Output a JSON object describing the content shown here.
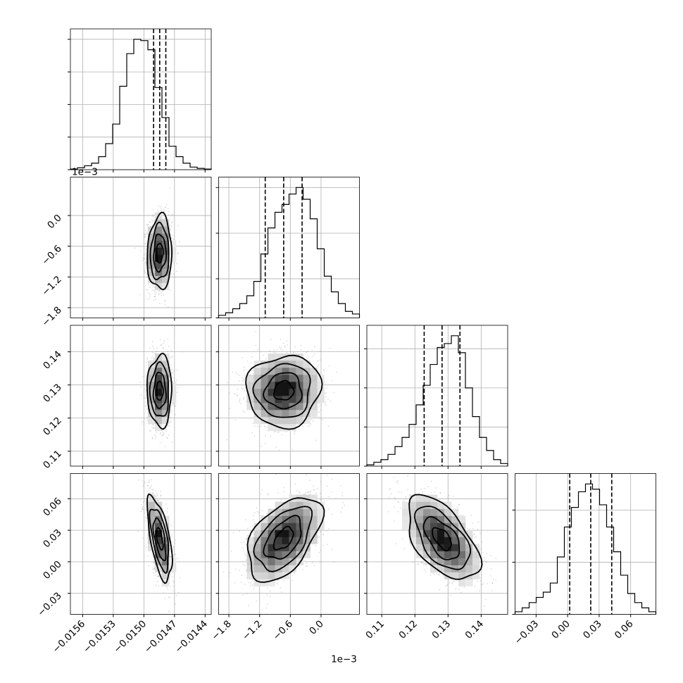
{
  "chart_data": {
    "type": "corner",
    "n_params": 4,
    "quantiles": [
      0.16,
      0.5,
      0.84
    ],
    "params": [
      {
        "range": [
          -0.01572,
          -0.01434
        ],
        "ticks": [
          -0.0156,
          -0.0153,
          -0.015,
          -0.0147,
          -0.0144
        ],
        "tick_labels": [
          "−0.0156",
          "−0.0153",
          "−0.0150",
          "−0.0147",
          "−0.0144"
        ],
        "median": -0.014845,
        "q16": -0.014905,
        "q84": -0.014785,
        "sigma": 6e-05,
        "hist": [
          0.005,
          0.015,
          0.03,
          0.05,
          0.1,
          0.2,
          0.35,
          0.64,
          0.89,
          1.0,
          0.99,
          0.92,
          0.63,
          0.4,
          0.18,
          0.1,
          0.05,
          0.02,
          0.01,
          0.005
        ],
        "hist_ticks": [
          0.0,
          0.25,
          0.5,
          0.75,
          1.0
        ],
        "offset_text": ""
      },
      {
        "range": [
          -2.0,
          0.75
        ],
        "ticks": [
          -1.8,
          -1.2,
          -0.6,
          0.0
        ],
        "tick_labels": [
          "−1.8",
          "−1.2",
          "−0.6",
          "0.0"
        ],
        "median": -0.73,
        "q16": -1.09,
        "q84": -0.37,
        "sigma": 0.36,
        "hist": [
          0.02,
          0.04,
          0.07,
          0.11,
          0.17,
          0.28,
          0.49,
          0.69,
          0.81,
          0.87,
          0.95,
          1.0,
          0.91,
          0.76,
          0.53,
          0.32,
          0.2,
          0.11,
          0.05,
          0.03
        ],
        "hist_ticks": [
          0.0,
          0.3,
          0.65,
          1.0
        ],
        "offset_text": "1e−3"
      },
      {
        "range": [
          0.1055,
          0.148
        ],
        "ticks": [
          0.11,
          0.12,
          0.13,
          0.14
        ],
        "tick_labels": [
          "0.11",
          "0.12",
          "0.13",
          "0.14"
        ],
        "median": 0.1282,
        "q16": 0.1228,
        "q84": 0.1336,
        "sigma": 0.0054,
        "hist": [
          0.01,
          0.03,
          0.05,
          0.09,
          0.15,
          0.22,
          0.32,
          0.47,
          0.62,
          0.78,
          0.91,
          0.94,
          1.0,
          0.87,
          0.6,
          0.38,
          0.22,
          0.12,
          0.05,
          0.02
        ],
        "hist_ticks": [
          0.0,
          0.3,
          0.6,
          0.9
        ],
        "offset_text": ""
      },
      {
        "range": [
          -0.05,
          0.084
        ],
        "ticks": [
          -0.03,
          0.0,
          0.03,
          0.06
        ],
        "tick_labels": [
          "−0.03",
          "0.00",
          "0.03",
          "0.06"
        ],
        "median": 0.022,
        "q16": 0.002,
        "q84": 0.042,
        "sigma": 0.02,
        "hist": [
          0.02,
          0.05,
          0.09,
          0.13,
          0.17,
          0.24,
          0.44,
          0.67,
          0.82,
          0.94,
          1.0,
          0.96,
          0.84,
          0.67,
          0.48,
          0.3,
          0.16,
          0.09,
          0.05,
          0.02
        ],
        "hist_ticks": [
          0.0,
          0.4,
          0.8
        ],
        "offset_text": ""
      }
    ],
    "correlations": {
      "1-0": 0.05,
      "2-0": 0.0,
      "2-1": 0.05,
      "3-0": -0.6,
      "3-1": 0.5,
      "3-2": -0.55
    },
    "grid": true
  }
}
